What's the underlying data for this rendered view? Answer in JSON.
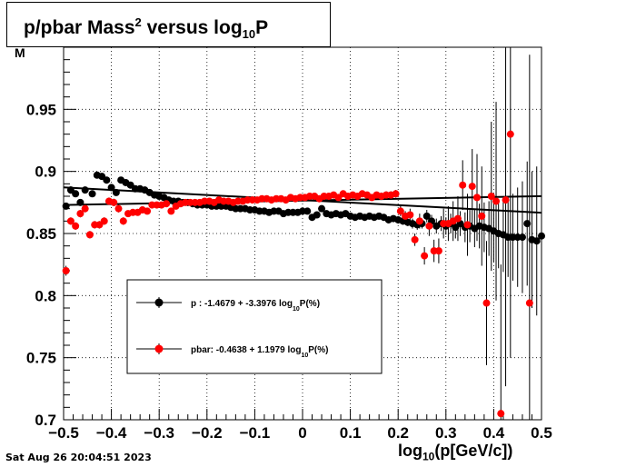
{
  "header": {
    "title_main": "p/pbar Mass",
    "title_sup": "2",
    "title_mid": " versus log",
    "title_sub": "10",
    "title_end": "P"
  },
  "footer": {
    "date": "Sat Aug 26 20:04:51 2023"
  },
  "axes": {
    "xlabel_main": "log",
    "xlabel_sub": "10",
    "xlabel_end": "(p[GeV/c])",
    "ylabel_fragment": "M"
  },
  "chart_data": {
    "type": "scatter",
    "title": "p/pbar Mass² versus log10P",
    "xlabel": "log10(p[GeV/c])",
    "ylabel": "",
    "xlim": [
      -0.5,
      0.5
    ],
    "ylim": [
      0.7,
      1.0
    ],
    "x_ticks": [
      -0.5,
      -0.4,
      -0.3,
      -0.2,
      -0.1,
      0,
      0.1,
      0.2,
      0.3,
      0.4,
      0.5
    ],
    "x_tick_labels": [
      "−0.5",
      "−0.4",
      "−0.3",
      "−0.2",
      "−0.1",
      "0",
      "0.1",
      "0.2",
      "0.3",
      "0.4",
      "0.5"
    ],
    "y_ticks": [
      0.7,
      0.75,
      0.8,
      0.85,
      0.9,
      0.95
    ],
    "y_tick_labels": [
      "0.7",
      "0.75",
      "0.8",
      "0.85",
      "0.9",
      "0.95"
    ],
    "grid": true,
    "legend_position": "center-left",
    "series": [
      {
        "name": "p   : -1.4679 + -3.3976 log10P(%)",
        "legend_label_main": "p   : -1.4679 + -3.3976 log",
        "legend_label_sub": "10",
        "legend_label_end": "P(%)",
        "color": "#000000",
        "fit": {
          "intercept": 0.87692,
          "slope": -0.02039
        },
        "x": [
          -0.495,
          -0.485,
          -0.475,
          -0.465,
          -0.455,
          -0.44,
          -0.43,
          -0.42,
          -0.41,
          -0.4,
          -0.39,
          -0.38,
          -0.37,
          -0.36,
          -0.35,
          -0.34,
          -0.33,
          -0.32,
          -0.31,
          -0.3,
          -0.29,
          -0.28,
          -0.27,
          -0.26,
          -0.25,
          -0.24,
          -0.23,
          -0.22,
          -0.21,
          -0.2,
          -0.19,
          -0.18,
          -0.17,
          -0.16,
          -0.15,
          -0.14,
          -0.13,
          -0.12,
          -0.11,
          -0.1,
          -0.09,
          -0.08,
          -0.07,
          -0.06,
          -0.05,
          -0.04,
          -0.03,
          -0.02,
          -0.01,
          0.0,
          0.01,
          0.02,
          0.03,
          0.04,
          0.05,
          0.06,
          0.07,
          0.08,
          0.09,
          0.1,
          0.11,
          0.12,
          0.13,
          0.14,
          0.15,
          0.16,
          0.17,
          0.18,
          0.19,
          0.2,
          0.21,
          0.22,
          0.23,
          0.24,
          0.25,
          0.26,
          0.27,
          0.28,
          0.29,
          0.3,
          0.31,
          0.32,
          0.33,
          0.34,
          0.35,
          0.36,
          0.37,
          0.38,
          0.39,
          0.4,
          0.41,
          0.42,
          0.43,
          0.44,
          0.45,
          0.46,
          0.47,
          0.48,
          0.49,
          0.5
        ],
        "y": [
          0.872,
          0.885,
          0.882,
          0.875,
          0.885,
          0.882,
          0.897,
          0.896,
          0.893,
          0.887,
          0.883,
          0.893,
          0.891,
          0.889,
          0.886,
          0.886,
          0.885,
          0.883,
          0.881,
          0.88,
          0.879,
          0.877,
          0.876,
          0.876,
          0.875,
          0.875,
          0.874,
          0.873,
          0.873,
          0.873,
          0.872,
          0.872,
          0.872,
          0.872,
          0.871,
          0.87,
          0.87,
          0.87,
          0.869,
          0.869,
          0.868,
          0.868,
          0.867,
          0.868,
          0.868,
          0.866,
          0.867,
          0.867,
          0.867,
          0.868,
          0.868,
          0.863,
          0.865,
          0.87,
          0.866,
          0.865,
          0.866,
          0.865,
          0.866,
          0.864,
          0.863,
          0.864,
          0.863,
          0.864,
          0.863,
          0.864,
          0.863,
          0.861,
          0.862,
          0.861,
          0.86,
          0.859,
          0.858,
          0.857,
          0.858,
          0.864,
          0.86,
          0.856,
          0.858,
          0.856,
          0.858,
          0.855,
          0.858,
          0.855,
          0.856,
          0.854,
          0.856,
          0.855,
          0.854,
          0.852,
          0.85,
          0.849,
          0.847,
          0.847,
          0.847,
          0.847,
          0.858,
          0.845,
          0.844,
          0.848
        ],
        "yerr": [
          0.002,
          0.003,
          0.002,
          0.002,
          0.002,
          0.002,
          0.002,
          0.002,
          0.002,
          0.002,
          0.002,
          0.002,
          0.002,
          0.002,
          0.002,
          0.002,
          0.002,
          0.002,
          0.002,
          0.002,
          0.002,
          0.002,
          0.002,
          0.002,
          0.002,
          0.002,
          0.002,
          0.002,
          0.002,
          0.002,
          0.002,
          0.002,
          0.002,
          0.002,
          0.002,
          0.002,
          0.002,
          0.002,
          0.002,
          0.002,
          0.002,
          0.002,
          0.002,
          0.002,
          0.002,
          0.002,
          0.002,
          0.002,
          0.002,
          0.002,
          0.002,
          0.002,
          0.002,
          0.002,
          0.002,
          0.002,
          0.002,
          0.002,
          0.002,
          0.002,
          0.002,
          0.002,
          0.002,
          0.002,
          0.002,
          0.002,
          0.002,
          0.002,
          0.002,
          0.003,
          0.003,
          0.003,
          0.004,
          0.004,
          0.004,
          0.005,
          0.005,
          0.006,
          0.006,
          0.007,
          0.008,
          0.009,
          0.01,
          0.012,
          0.013,
          0.015,
          0.018,
          0.02,
          0.022,
          0.025,
          0.028,
          0.03,
          0.032,
          0.035,
          0.04,
          0.045,
          0.05,
          0.055,
          0.06,
          0.065
        ]
      },
      {
        "name": "pbar: -0.4638 + 1.1979 log10P(%)",
        "legend_label_main": "pbar: -0.4638 + 1.1979 log",
        "legend_label_sub": "10",
        "legend_label_end": "P(%)",
        "color": "#ff0000",
        "fit": {
          "intercept": 0.87654,
          "slope": 0.00719
        },
        "x": [
          -0.495,
          -0.485,
          -0.475,
          -0.465,
          -0.455,
          -0.445,
          -0.435,
          -0.425,
          -0.415,
          -0.405,
          -0.395,
          -0.385,
          -0.375,
          -0.365,
          -0.355,
          -0.345,
          -0.335,
          -0.325,
          -0.315,
          -0.305,
          -0.295,
          -0.285,
          -0.275,
          -0.265,
          -0.255,
          -0.245,
          -0.235,
          -0.225,
          -0.215,
          -0.205,
          -0.195,
          -0.185,
          -0.175,
          -0.165,
          -0.155,
          -0.145,
          -0.135,
          -0.125,
          -0.115,
          -0.105,
          -0.095,
          -0.085,
          -0.075,
          -0.065,
          -0.055,
          -0.045,
          -0.035,
          -0.025,
          -0.015,
          -0.005,
          0.005,
          0.015,
          0.025,
          0.035,
          0.045,
          0.055,
          0.065,
          0.075,
          0.085,
          0.095,
          0.105,
          0.115,
          0.125,
          0.135,
          0.145,
          0.155,
          0.165,
          0.175,
          0.185,
          0.195,
          0.205,
          0.215,
          0.225,
          0.235,
          0.245,
          0.255,
          0.265,
          0.275,
          0.285,
          0.295,
          0.305,
          0.315,
          0.325,
          0.335,
          0.345,
          0.355,
          0.365,
          0.375,
          0.385,
          0.395,
          0.405,
          0.415,
          0.425,
          0.435,
          0.475
        ],
        "y": [
          0.82,
          0.86,
          0.856,
          0.866,
          0.87,
          0.849,
          0.857,
          0.857,
          0.86,
          0.876,
          0.875,
          0.87,
          0.86,
          0.866,
          0.867,
          0.867,
          0.869,
          0.868,
          0.873,
          0.873,
          0.873,
          0.874,
          0.868,
          0.872,
          0.874,
          0.875,
          0.875,
          0.875,
          0.875,
          0.876,
          0.876,
          0.875,
          0.877,
          0.876,
          0.876,
          0.875,
          0.876,
          0.876,
          0.877,
          0.877,
          0.877,
          0.878,
          0.878,
          0.877,
          0.878,
          0.878,
          0.877,
          0.879,
          0.878,
          0.879,
          0.879,
          0.88,
          0.88,
          0.878,
          0.88,
          0.88,
          0.881,
          0.879,
          0.882,
          0.88,
          0.881,
          0.88,
          0.882,
          0.881,
          0.879,
          0.881,
          0.88,
          0.881,
          0.881,
          0.882,
          0.868,
          0.864,
          0.865,
          0.845,
          0.86,
          0.832,
          0.856,
          0.836,
          0.836,
          0.858,
          0.858,
          0.86,
          0.862,
          0.889,
          0.857,
          0.888,
          0.879,
          0.864,
          0.794,
          0.88,
          0.876,
          0.705,
          0.877,
          0.93,
          0.794
        ],
        "yerr": [
          0.004,
          0.003,
          0.003,
          0.003,
          0.003,
          0.003,
          0.003,
          0.003,
          0.003,
          0.003,
          0.003,
          0.003,
          0.003,
          0.002,
          0.002,
          0.002,
          0.002,
          0.002,
          0.002,
          0.002,
          0.002,
          0.002,
          0.002,
          0.002,
          0.002,
          0.002,
          0.002,
          0.002,
          0.002,
          0.002,
          0.002,
          0.002,
          0.002,
          0.002,
          0.002,
          0.002,
          0.002,
          0.002,
          0.002,
          0.002,
          0.002,
          0.002,
          0.002,
          0.002,
          0.002,
          0.002,
          0.002,
          0.002,
          0.002,
          0.002,
          0.002,
          0.002,
          0.002,
          0.002,
          0.002,
          0.002,
          0.002,
          0.002,
          0.002,
          0.002,
          0.002,
          0.002,
          0.002,
          0.002,
          0.002,
          0.002,
          0.003,
          0.003,
          0.003,
          0.003,
          0.004,
          0.004,
          0.005,
          0.005,
          0.006,
          0.007,
          0.008,
          0.009,
          0.01,
          0.012,
          0.014,
          0.016,
          0.018,
          0.02,
          0.025,
          0.03,
          0.035,
          0.04,
          0.05,
          0.06,
          0.08,
          0.12,
          0.15,
          0.18,
          0.2
        ]
      }
    ]
  }
}
